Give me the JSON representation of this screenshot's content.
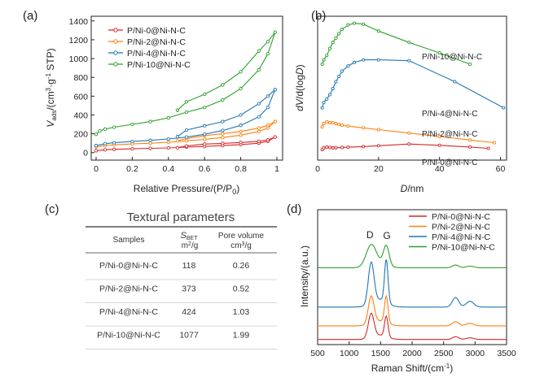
{
  "panel_labels": {
    "a": "(a)",
    "b": "(b)",
    "c": "(c)",
    "d": "(d)"
  },
  "colors": {
    "red": "#d62728",
    "orange": "#ff7f0e",
    "blue": "#1f77b4",
    "green": "#2ca02c"
  },
  "chart_data": [
    {
      "panel": "a",
      "type": "line",
      "xlabel": "Relative Pressure/(P/P0)",
      "ylabel": "Vads/(cm3·g-1 STP)",
      "xlim": [
        0,
        1
      ],
      "ylim": [
        -80,
        1450
      ],
      "xticks": [
        "0",
        "0.2",
        "0.4",
        "0.6",
        "0.8",
        "1"
      ],
      "yticks": [
        "0",
        "200",
        "400",
        "600",
        "800",
        "1000",
        "1200",
        "1400"
      ],
      "legend": [
        "P/Ni-0@Ni-N-C",
        "P/Ni-2@Ni-N-C",
        "P/Ni-4@Ni-N-C",
        "P/Ni-10@Ni-N-C"
      ],
      "legend_position": "top-left",
      "series": [
        {
          "name": "P/Ni-0@Ni-N-C",
          "color": "#d62728",
          "adsorption": [
            [
              0.0,
              20
            ],
            [
              0.05,
              30
            ],
            [
              0.1,
              35
            ],
            [
              0.2,
              40
            ],
            [
              0.3,
              45
            ],
            [
              0.4,
              50
            ],
            [
              0.5,
              58
            ],
            [
              0.6,
              65
            ],
            [
              0.7,
              75
            ],
            [
              0.8,
              85
            ],
            [
              0.9,
              100
            ],
            [
              0.95,
              120
            ],
            [
              0.99,
              165
            ]
          ],
          "desorption": [
            [
              0.99,
              165
            ],
            [
              0.95,
              135
            ],
            [
              0.9,
              120
            ],
            [
              0.8,
              108
            ],
            [
              0.7,
              98
            ],
            [
              0.6,
              90
            ],
            [
              0.5,
              70
            ],
            [
              0.45,
              52
            ]
          ]
        },
        {
          "name": "P/Ni-2@Ni-N-C",
          "color": "#ff7f0e",
          "adsorption": [
            [
              0.0,
              60
            ],
            [
              0.05,
              75
            ],
            [
              0.1,
              82
            ],
            [
              0.2,
              92
            ],
            [
              0.3,
              100
            ],
            [
              0.4,
              110
            ],
            [
              0.5,
              125
            ],
            [
              0.6,
              140
            ],
            [
              0.7,
              160
            ],
            [
              0.8,
              185
            ],
            [
              0.9,
              225
            ],
            [
              0.95,
              260
            ],
            [
              0.99,
              330
            ]
          ],
          "desorption": [
            [
              0.99,
              330
            ],
            [
              0.95,
              290
            ],
            [
              0.9,
              260
            ],
            [
              0.8,
              225
            ],
            [
              0.7,
              200
            ],
            [
              0.6,
              180
            ],
            [
              0.5,
              150
            ],
            [
              0.45,
              125
            ]
          ]
        },
        {
          "name": "P/Ni-4@Ni-N-C",
          "color": "#1f77b4",
          "adsorption": [
            [
              0.0,
              75
            ],
            [
              0.05,
              95
            ],
            [
              0.1,
              105
            ],
            [
              0.2,
              118
            ],
            [
              0.3,
              130
            ],
            [
              0.4,
              145
            ],
            [
              0.5,
              165
            ],
            [
              0.6,
              195
            ],
            [
              0.7,
              235
            ],
            [
              0.8,
              290
            ],
            [
              0.9,
              380
            ],
            [
              0.95,
              480
            ],
            [
              0.99,
              670
            ]
          ],
          "desorption": [
            [
              0.99,
              670
            ],
            [
              0.95,
              600
            ],
            [
              0.9,
              520
            ],
            [
              0.8,
              400
            ],
            [
              0.7,
              330
            ],
            [
              0.6,
              285
            ],
            [
              0.5,
              240
            ],
            [
              0.45,
              170
            ]
          ]
        },
        {
          "name": "P/Ni-10@Ni-N-C",
          "color": "#2ca02c",
          "adsorption": [
            [
              0.0,
              195
            ],
            [
              0.02,
              230
            ],
            [
              0.05,
              250
            ],
            [
              0.1,
              270
            ],
            [
              0.2,
              300
            ],
            [
              0.3,
              330
            ],
            [
              0.4,
              370
            ],
            [
              0.5,
              430
            ],
            [
              0.6,
              480
            ],
            [
              0.7,
              560
            ],
            [
              0.8,
              680
            ],
            [
              0.9,
              880
            ],
            [
              0.95,
              1050
            ],
            [
              0.99,
              1280
            ]
          ],
          "desorption": [
            [
              0.99,
              1280
            ],
            [
              0.95,
              1180
            ],
            [
              0.9,
              1080
            ],
            [
              0.8,
              860
            ],
            [
              0.7,
              720
            ],
            [
              0.6,
              620
            ],
            [
              0.5,
              540
            ],
            [
              0.45,
              450
            ]
          ]
        }
      ]
    },
    {
      "panel": "b",
      "type": "line",
      "xlabel": "D/nm",
      "ylabel": "dV/d(logD)",
      "xlim": [
        0,
        62
      ],
      "xticks": [
        "0",
        "20",
        "40",
        "60"
      ],
      "yticks": [],
      "series": [
        {
          "name": "P/Ni-0@Ni-N-C",
          "color": "#d62728",
          "curve_label": "P/Ni-0@Ni-N-C",
          "points": [
            [
              1.5,
              0.02
            ],
            [
              2,
              0.04
            ],
            [
              3,
              0.05
            ],
            [
              4,
              0.045
            ],
            [
              5,
              0.04
            ],
            [
              6,
              0.042
            ],
            [
              8,
              0.045
            ],
            [
              10,
              0.048
            ],
            [
              15,
              0.055
            ],
            [
              20,
              0.065
            ],
            [
              30,
              0.085
            ],
            [
              40,
              0.07
            ],
            [
              50,
              0.05
            ],
            [
              56,
              0.035
            ]
          ]
        },
        {
          "name": "P/Ni-2@Ni-N-C",
          "color": "#ff7f0e",
          "curve_label": "P/Ni-2@Ni-N-C",
          "points": [
            [
              1.5,
              0.28
            ],
            [
              2,
              0.32
            ],
            [
              3,
              0.34
            ],
            [
              4,
              0.33
            ],
            [
              5,
              0.33
            ],
            [
              6,
              0.32
            ],
            [
              7,
              0.31
            ],
            [
              8,
              0.3
            ],
            [
              10,
              0.29
            ],
            [
              15,
              0.27
            ],
            [
              20,
              0.25
            ],
            [
              30,
              0.21
            ],
            [
              40,
              0.17
            ],
            [
              50,
              0.13
            ],
            [
              58,
              0.1
            ]
          ]
        },
        {
          "name": "P/Ni-4@Ni-N-C",
          "color": "#1f77b4",
          "curve_label": "P/Ni-4@Ni-N-C",
          "points": [
            [
              1.5,
              0.5
            ],
            [
              2,
              0.56
            ],
            [
              3,
              0.6
            ],
            [
              4,
              0.65
            ],
            [
              5,
              0.72
            ],
            [
              6,
              0.8
            ],
            [
              7,
              0.86
            ],
            [
              8,
              0.92
            ],
            [
              10,
              0.98
            ],
            [
              12,
              1.02
            ],
            [
              15,
              1.05
            ],
            [
              20,
              1.05
            ],
            [
              30,
              1.04
            ],
            [
              45,
              0.8
            ],
            [
              61,
              0.5
            ]
          ]
        },
        {
          "name": "P/Ni-10@Ni-N-C",
          "color": "#2ca02c",
          "curve_label": "P/Ni-10@Ni-N-C",
          "points": [
            [
              1.5,
              1.0
            ],
            [
              2,
              1.05
            ],
            [
              3,
              1.1
            ],
            [
              4,
              1.18
            ],
            [
              5,
              1.25
            ],
            [
              6,
              1.3
            ],
            [
              7,
              1.35
            ],
            [
              8,
              1.4
            ],
            [
              10,
              1.45
            ],
            [
              12,
              1.47
            ],
            [
              15,
              1.46
            ],
            [
              20,
              1.38
            ],
            [
              30,
              1.25
            ],
            [
              40,
              1.13
            ],
            [
              50,
              1.0
            ]
          ]
        }
      ]
    },
    {
      "panel": "c",
      "type": "table",
      "title": "Textural parameters",
      "columns": [
        "Samples",
        "S_BET",
        "Pore volume"
      ],
      "column_units": [
        "",
        "m2/g",
        "cm3/g"
      ],
      "rows": [
        [
          "P/Ni-0@Ni-N-C",
          "118",
          "0.26"
        ],
        [
          "P/Ni-2@Ni-N-C",
          "373",
          "0.52"
        ],
        [
          "P/Ni-4@Ni-N-C",
          "424",
          "1.03"
        ],
        [
          "P/Ni-10@Ni-N-C",
          "1077",
          "1.99"
        ]
      ]
    },
    {
      "panel": "d",
      "type": "line",
      "xlabel": "Raman Shift/(cm-1)",
      "ylabel": "Intensity/(a.u.)",
      "xlim": [
        500,
        3500
      ],
      "xticks": [
        "500",
        "1000",
        "1500",
        "2000",
        "2500",
        "3000",
        "3500"
      ],
      "yticks": [],
      "annotations": [
        "D",
        "G"
      ],
      "legend": [
        "P/Ni-0@Ni-N-C",
        "P/Ni-2@Ni-N-C",
        "P/Ni-4@Ni-N-C",
        "P/Ni-10@Ni-N-C"
      ],
      "legend_position": "top-right",
      "series": [
        {
          "name": "P/Ni-0@Ni-N-C",
          "color": "#d62728",
          "offset": 0,
          "d_height": 0.7,
          "g_height": 0.6,
          "twod_height": 0.08,
          "d_width": 45,
          "g_width": 28
        },
        {
          "name": "P/Ni-2@Ni-N-C",
          "color": "#ff7f0e",
          "offset": 0.4,
          "d_height": 0.8,
          "g_height": 0.78,
          "twod_height": 0.12,
          "d_width": 45,
          "g_width": 28
        },
        {
          "name": "P/Ni-4@Ni-N-C",
          "color": "#1f77b4",
          "offset": 0.95,
          "d_height": 1.2,
          "g_height": 1.25,
          "twod_height": 0.28,
          "d_width": 45,
          "g_width": 28
        },
        {
          "name": "P/Ni-10@Ni-N-C",
          "color": "#2ca02c",
          "offset": 2.1,
          "d_height": 0.62,
          "g_height": 0.58,
          "twod_height": 0.08,
          "d_width": 80,
          "g_width": 45
        }
      ]
    }
  ]
}
